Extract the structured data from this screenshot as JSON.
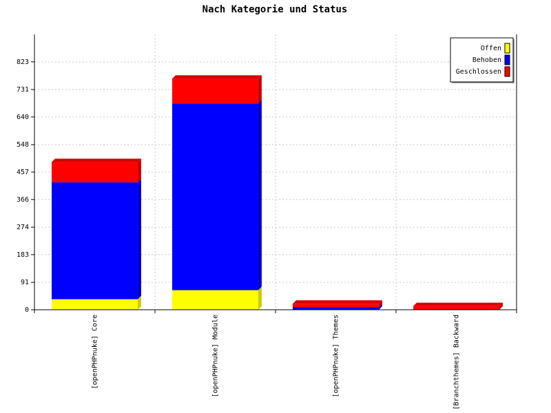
{
  "chart_data": {
    "type": "bar",
    "stacked": true,
    "three_d": true,
    "title": "Nach Kategorie und Status",
    "xlabel": "",
    "ylabel": "",
    "categories": [
      "[openPHPnuke] Core",
      "[openPHPnuke] Module",
      "[openPHPnuke] Themes",
      "[Branchthemes] Backward"
    ],
    "series": [
      {
        "name": "Offen",
        "color": "#ffff00",
        "values": [
          35,
          65,
          0,
          0
        ]
      },
      {
        "name": "Behoben",
        "color": "#0000ff",
        "values": [
          388,
          620,
          8,
          0
        ]
      },
      {
        "name": "Geschlossen",
        "color": "#ff0000",
        "values": [
          67,
          82,
          12,
          12
        ]
      }
    ],
    "y_ticks": [
      "0",
      "91",
      "183",
      "274",
      "366",
      "457",
      "548",
      "640",
      "731",
      "823"
    ],
    "ylim": [
      0,
      914
    ],
    "grid": true,
    "legend_position": "top-right"
  }
}
